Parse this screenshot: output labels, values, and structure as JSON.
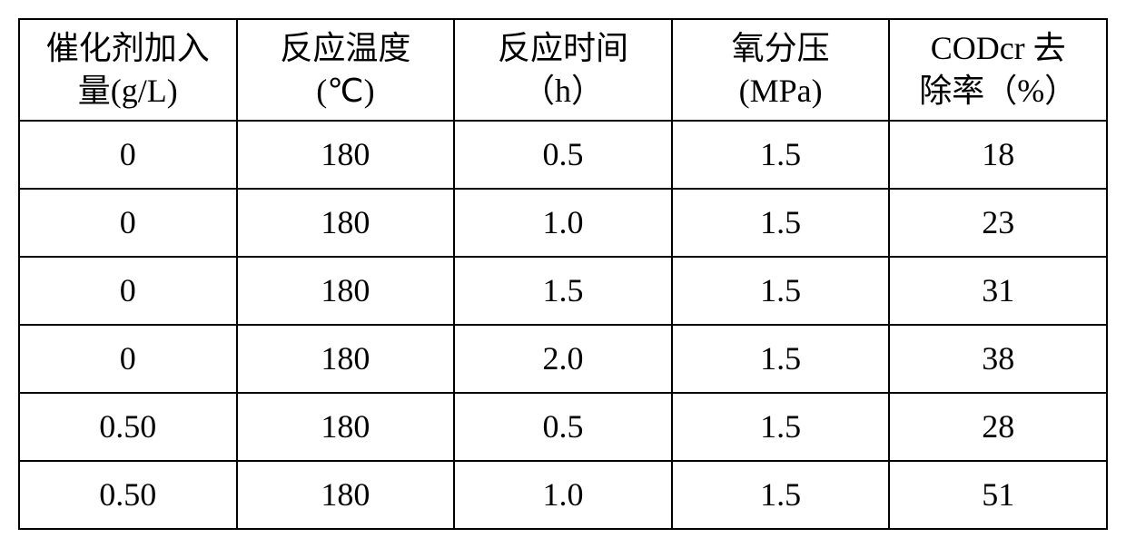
{
  "table": {
    "type": "table",
    "background_color": "#ffffff",
    "border_color": "#000000",
    "border_width": 2,
    "text_color": "#000000",
    "header_fontsize": 36,
    "cell_fontsize": 36,
    "font_family": "SimSun",
    "columns": [
      {
        "label_line1": "催化剂加入",
        "label_line2": "量(g/L)",
        "width_pct": 20,
        "align": "center"
      },
      {
        "label_line1": "反应温度",
        "label_line2": "(℃)",
        "width_pct": 20,
        "align": "center"
      },
      {
        "label_line1": "反应时间",
        "label_line2": "（h）",
        "width_pct": 20,
        "align": "center"
      },
      {
        "label_line1": "氧分压",
        "label_line2": "(MPa)",
        "width_pct": 20,
        "align": "center"
      },
      {
        "label_line1": "CODcr 去",
        "label_line2": "除率（%）",
        "width_pct": 20,
        "align": "center"
      }
    ],
    "rows": [
      [
        "0",
        "180",
        "0.5",
        "1.5",
        "18"
      ],
      [
        "0",
        "180",
        "1.0",
        "1.5",
        "23"
      ],
      [
        "0",
        "180",
        "1.5",
        "1.5",
        "31"
      ],
      [
        "0",
        "180",
        "2.0",
        "1.5",
        "38"
      ],
      [
        "0.50",
        "180",
        "0.5",
        "1.5",
        "28"
      ],
      [
        "0.50",
        "180",
        "1.0",
        "1.5",
        "51"
      ]
    ],
    "header_row_height": 105,
    "data_row_height": 75
  }
}
